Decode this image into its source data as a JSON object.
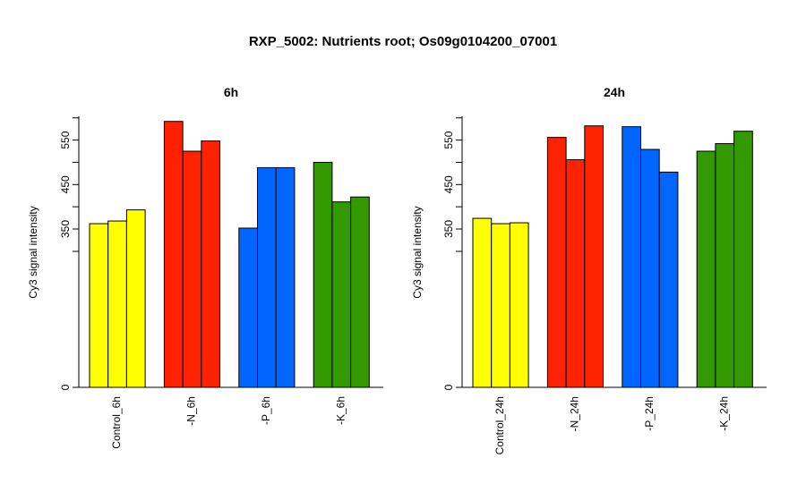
{
  "page": {
    "title": "RXP_5002: Nutrients root; Os09g0104200_07001"
  },
  "colors": {
    "control": "#FFFF00",
    "minus_n": "#FF2200",
    "minus_p": "#0066FF",
    "minus_k": "#339900",
    "axis": "#000000",
    "bar_outline": "#000000"
  },
  "chart_data": [
    {
      "type": "bar",
      "title": "6h",
      "xlabel": "",
      "ylabel": "Cy3 signal intensity",
      "ylim_note": "broken y-axis: 0 at bottom, then 350-600 range",
      "y_ticks": [
        0,
        350,
        450,
        550
      ],
      "groups": [
        {
          "label": "Control_6h",
          "color": "#FFFF00",
          "values": [
            362,
            368,
            393
          ]
        },
        {
          "label": "-N_6h",
          "color": "#FF2200",
          "values": [
            592,
            525,
            548
          ]
        },
        {
          "label": "-P_6h",
          "color": "#0066FF",
          "values": [
            352,
            488,
            488
          ]
        },
        {
          "label": "-K_6h",
          "color": "#339900",
          "values": [
            500,
            411,
            422
          ]
        }
      ]
    },
    {
      "type": "bar",
      "title": "24h",
      "xlabel": "",
      "ylabel": "Cy3 signal intensity",
      "ylim_note": "broken y-axis: 0 at bottom, then 350-600 range",
      "y_ticks": [
        0,
        350,
        450,
        550
      ],
      "groups": [
        {
          "label": "Control_24h",
          "color": "#FFFF00",
          "values": [
            374,
            362,
            364
          ]
        },
        {
          "label": "-N_24h",
          "color": "#FF2200",
          "values": [
            556,
            506,
            582
          ]
        },
        {
          "label": "-P_24h",
          "color": "#0066FF",
          "values": [
            580,
            529,
            478
          ]
        },
        {
          "label": "-K_24h",
          "color": "#339900",
          "values": [
            525,
            542,
            570
          ]
        }
      ]
    }
  ]
}
